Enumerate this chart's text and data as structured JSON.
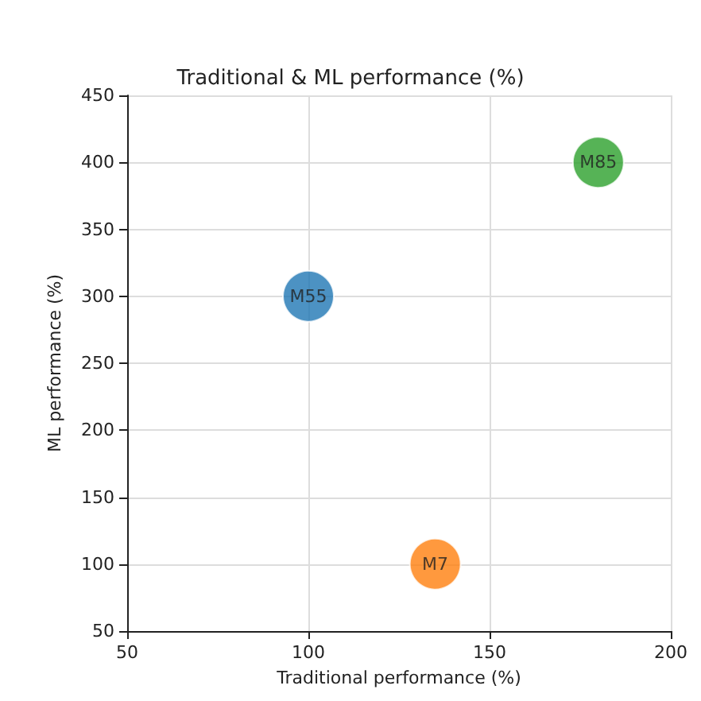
{
  "chart_data": {
    "type": "scatter",
    "title": "Traditional & ML performance (%)",
    "xlabel": "Traditional performance (%)",
    "ylabel": "ML performance (%)",
    "xlim": [
      50,
      200
    ],
    "xticks": [
      50,
      100,
      150,
      200
    ],
    "ylim": [
      50,
      450
    ],
    "yticks": [
      50,
      100,
      150,
      200,
      250,
      300,
      350,
      400,
      450
    ],
    "grid": true,
    "marker": "circle",
    "legend": false,
    "series": [
      {
        "name": "M55",
        "color": "#1f77b4",
        "x": [
          100
        ],
        "values": [
          300
        ]
      },
      {
        "name": "M7",
        "color": "#ff7f0e",
        "x": [
          135
        ],
        "values": [
          100
        ]
      },
      {
        "name": "M85",
        "color": "#2ca02c",
        "x": [
          180
        ],
        "values": [
          400
        ]
      }
    ]
  }
}
